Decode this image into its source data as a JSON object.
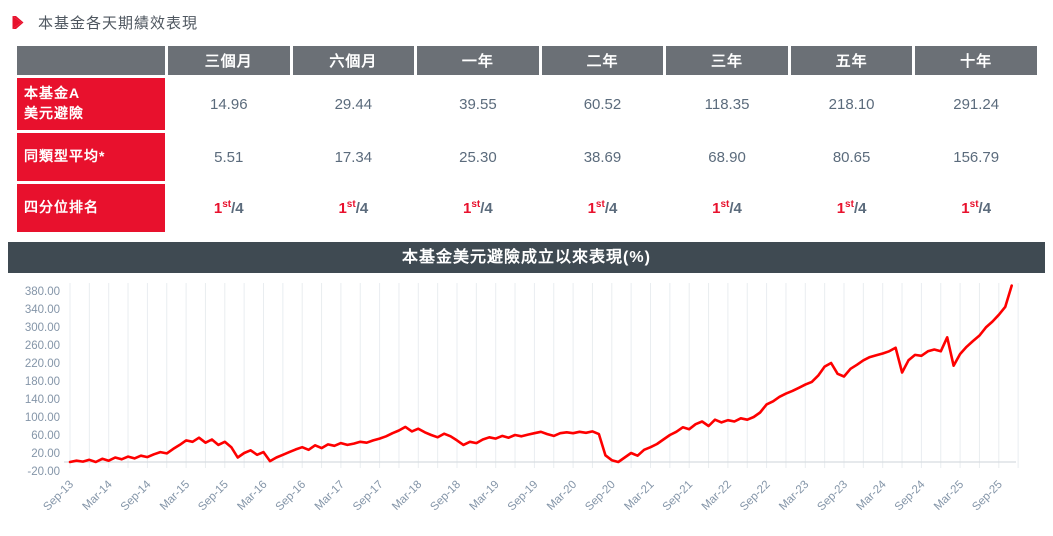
{
  "page": {
    "title": "本基金各天期績效表現"
  },
  "table": {
    "columns": [
      "三個月",
      "六個月",
      "一年",
      "二年",
      "三年",
      "五年",
      "十年"
    ],
    "rows": [
      {
        "type": "values",
        "label_lines": [
          "本基金A",
          "美元避險"
        ],
        "values": [
          "14.96",
          "29.44",
          "39.55",
          "60.52",
          "118.35",
          "218.10",
          "291.24"
        ]
      },
      {
        "type": "values",
        "label_lines": [
          "同類型平均*"
        ],
        "values": [
          "5.51",
          "17.34",
          "25.30",
          "38.69",
          "68.90",
          "80.65",
          "156.79"
        ]
      },
      {
        "type": "quartile",
        "label_lines": [
          "四分位排名"
        ],
        "rank": "1",
        "rank_sup": "st",
        "denominator": "/4",
        "count": 7
      }
    ]
  },
  "chart_data": {
    "type": "line",
    "title": "本基金美元避險成立以來表現(%)",
    "series_name": "本基金美元避險",
    "x_labels": [
      "Sep-13",
      "Mar-14",
      "Sep-14",
      "Mar-15",
      "Sep-15",
      "Mar-16",
      "Sep-16",
      "Mar-17",
      "Sep-17",
      "Mar-18",
      "Sep-18",
      "Mar-19",
      "Sep-19",
      "Mar-20",
      "Sep-20",
      "Mar-21",
      "Sep-21",
      "Mar-22",
      "Sep-22",
      "Mar-23",
      "Sep-23",
      "Mar-24",
      "Sep-24",
      "Mar-25",
      "Sep-25"
    ],
    "x_start_month": "Sep-13",
    "x_end_month": "Nov-25",
    "x_interval_months": 1,
    "y_ticks": [
      380,
      340,
      300,
      260,
      220,
      180,
      140,
      100,
      60,
      20,
      -20
    ],
    "ylim": [
      -20,
      405
    ],
    "grid": "vertical-quarterly",
    "legend": "none",
    "line_color": "#fe0000",
    "values": [
      0,
      3,
      1,
      5,
      0,
      7,
      3,
      10,
      6,
      12,
      8,
      14,
      11,
      17,
      22,
      19,
      29,
      38,
      48,
      45,
      54,
      43,
      50,
      38,
      45,
      33,
      10,
      20,
      26,
      16,
      22,
      2,
      10,
      16,
      22,
      28,
      33,
      27,
      37,
      31,
      39,
      36,
      42,
      38,
      41,
      45,
      43,
      48,
      52,
      57,
      64,
      70,
      78,
      68,
      74,
      66,
      60,
      55,
      63,
      57,
      48,
      38,
      45,
      42,
      50,
      55,
      52,
      58,
      54,
      60,
      57,
      61,
      64,
      67,
      62,
      58,
      64,
      66,
      64,
      67,
      65,
      68,
      62,
      15,
      4,
      0,
      10,
      20,
      14,
      27,
      33,
      40,
      50,
      60,
      67,
      77,
      73,
      84,
      90,
      80,
      94,
      88,
      93,
      90,
      97,
      94,
      100,
      110,
      128,
      135,
      145,
      152,
      158,
      165,
      172,
      178,
      192,
      212,
      220,
      196,
      190,
      207,
      216,
      226,
      233,
      237,
      241,
      246,
      254,
      199,
      226,
      238,
      236,
      246,
      250,
      246,
      277,
      214,
      240,
      256,
      269,
      281,
      299,
      312,
      327,
      345,
      392
    ]
  },
  "colors": {
    "header_bg": "#6b7076",
    "row_label_bg": "#e8112d",
    "value_text": "#5b6b7c",
    "accent_red": "#e8112d",
    "chart_title_bg": "#3f4a52",
    "axis_label": "#8495a8",
    "grid_line": "#e9edf0",
    "zero_line": "#d7dce0",
    "line_color": "#fe0000"
  }
}
